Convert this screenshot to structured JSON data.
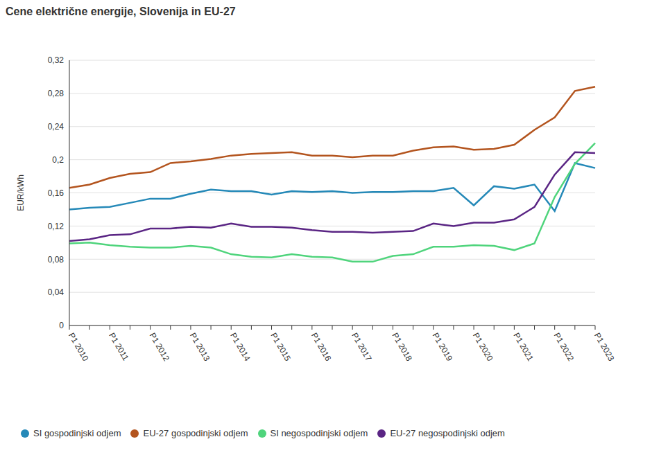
{
  "chart_data": {
    "type": "line",
    "title": "Cene električne energije, Slovenija in EU-27",
    "y_label": "EUR/kWh",
    "categories": [
      "P1 2010",
      null,
      "P1 2011",
      null,
      "P1 2012",
      null,
      "P1 2013",
      null,
      "P1 2014",
      null,
      "P1 2015",
      null,
      "P1 2016",
      null,
      "P1 2017",
      null,
      "P1 2018",
      null,
      "P1 2019",
      null,
      "P1 2020",
      null,
      "P1 2021",
      null,
      "P1 2022",
      null,
      "P1 2023"
    ],
    "series": [
      {
        "name": "SI gospodinjski odjem",
        "color": "#2589b8",
        "values": [
          0.14,
          0.142,
          0.143,
          0.148,
          0.153,
          0.153,
          0.159,
          0.164,
          0.162,
          0.162,
          0.158,
          0.162,
          0.161,
          0.162,
          0.16,
          0.161,
          0.161,
          0.162,
          0.162,
          0.166,
          0.145,
          0.168,
          0.165,
          0.17,
          0.138,
          0.196,
          0.19
        ]
      },
      {
        "name": "EU-27 gospodinjski odjem",
        "color": "#b3541e",
        "values": [
          0.166,
          0.17,
          0.178,
          0.183,
          0.185,
          0.196,
          0.198,
          0.201,
          0.205,
          0.207,
          0.208,
          0.209,
          0.205,
          0.205,
          0.203,
          0.205,
          0.205,
          0.211,
          0.215,
          0.216,
          0.212,
          0.213,
          0.218,
          0.236,
          0.251,
          0.283,
          0.288
        ]
      },
      {
        "name": "SI negospodinjski odjem",
        "color": "#4fd47c",
        "values": [
          0.099,
          0.1,
          0.097,
          0.095,
          0.094,
          0.094,
          0.096,
          0.094,
          0.086,
          0.083,
          0.082,
          0.086,
          0.083,
          0.082,
          0.077,
          0.077,
          0.084,
          0.086,
          0.095,
          0.095,
          0.097,
          0.096,
          0.091,
          0.099,
          0.155,
          0.195,
          0.22
        ]
      },
      {
        "name": "EU-27 negospodinjski odjem",
        "color": "#5a2584",
        "values": [
          0.102,
          0.104,
          0.109,
          0.11,
          0.117,
          0.117,
          0.119,
          0.118,
          0.123,
          0.119,
          0.119,
          0.118,
          0.115,
          0.113,
          0.113,
          0.112,
          0.113,
          0.114,
          0.123,
          0.12,
          0.124,
          0.124,
          0.128,
          0.143,
          0.182,
          0.209,
          0.208
        ]
      }
    ],
    "ylim": [
      0,
      0.32
    ],
    "yticks": [
      0,
      {
        "value": 0.04,
        "label": "0,04"
      },
      {
        "value": 0.08,
        "label": "0,08"
      },
      {
        "value": 0.12,
        "label": "0,12"
      },
      {
        "value": 0.16,
        "label": "0,16"
      },
      {
        "value": 0.2,
        "label": "0,2"
      },
      {
        "value": 0.24,
        "label": "0,24"
      },
      {
        "value": 0.28,
        "label": "0,28"
      },
      {
        "value": 0.32,
        "label": "0,32"
      }
    ],
    "grid": true,
    "legend": "bottom"
  }
}
